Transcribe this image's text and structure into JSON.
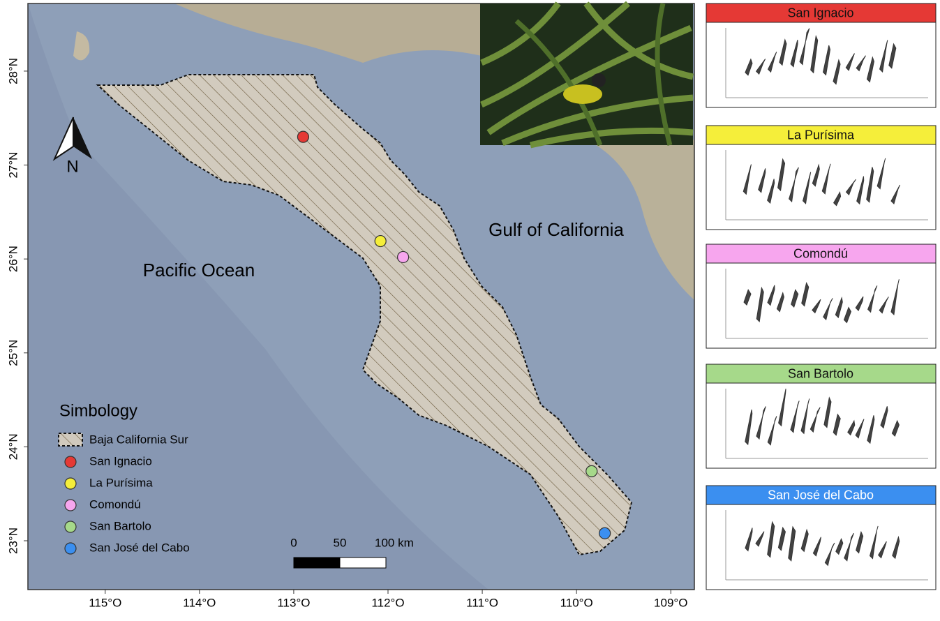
{
  "map": {
    "xlim": [
      -115.82,
      -108.75
    ],
    "ylim": [
      22.48,
      28.72
    ],
    "xticks": [
      {
        "value": -115,
        "label": "115°O"
      },
      {
        "value": -114,
        "label": "114°O"
      },
      {
        "value": -113,
        "label": "113°O"
      },
      {
        "value": -112,
        "label": "112°O"
      },
      {
        "value": -111,
        "label": "111°O"
      },
      {
        "value": -110,
        "label": "110°O"
      },
      {
        "value": -109,
        "label": "109°O"
      }
    ],
    "yticks": [
      {
        "value": 23,
        "label": "23°N"
      },
      {
        "value": 24,
        "label": "24°N"
      },
      {
        "value": 25,
        "label": "25°N"
      },
      {
        "value": 26,
        "label": "26°N"
      },
      {
        "value": 27,
        "label": "27°N"
      },
      {
        "value": 28,
        "label": "28°N"
      }
    ],
    "labels": {
      "pacific": "Pacific Ocean",
      "gulf": "Gulf of California"
    },
    "north": "N",
    "legend": {
      "title": "Simbology",
      "area": "Baja California Sur"
    },
    "sites": [
      {
        "name": "San Ignacio",
        "lon": -112.9,
        "lat": 27.3,
        "color": "#e53935"
      },
      {
        "name": "La Purísima",
        "lon": -112.08,
        "lat": 26.19,
        "color": "#f5ee3a"
      },
      {
        "name": "Comondú",
        "lon": -111.84,
        "lat": 26.02,
        "color": "#f7a6ee"
      },
      {
        "name": "San Bartolo",
        "lon": -109.84,
        "lat": 23.74,
        "color": "#a6d98a"
      },
      {
        "name": "San José del Cabo",
        "lon": -109.7,
        "lat": 23.08,
        "color": "#3b8ff0"
      }
    ],
    "scale": {
      "ticks": [
        0,
        50,
        {
          "value": 100,
          "label": "100 km"
        }
      ]
    }
  }
}
